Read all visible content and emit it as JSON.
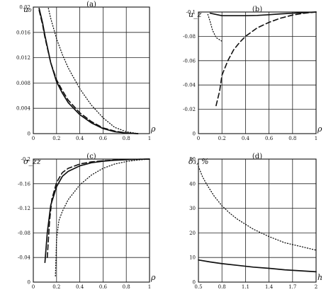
{
  "chart_data": [
    {
      "id": "a",
      "type": "line",
      "title": "(a)",
      "ylabel": "u₀",
      "xlabel": "ρ",
      "xlim": [
        0,
        1
      ],
      "ylim": [
        0,
        0.02
      ],
      "xticks": [
        "0",
        "0.2",
        "0.4",
        "0.6",
        "0.8",
        "1"
      ],
      "yticks": [
        "0",
        "0.004",
        "0.008",
        "0.012",
        "0.016",
        "0.02"
      ],
      "grid": true,
      "series": [
        {
          "style": "solid",
          "x": [
            0.05,
            0.08,
            0.1,
            0.15,
            0.2,
            0.25,
            0.3,
            0.4,
            0.5,
            0.6,
            0.7,
            0.8,
            0.9
          ],
          "y": [
            0.0198,
            0.0175,
            0.0155,
            0.0112,
            0.0082,
            0.0064,
            0.0049,
            0.003,
            0.0017,
            0.0008,
            0.0003,
            0.0001,
            0.0
          ]
        },
        {
          "style": "dashed",
          "x": [
            0.05,
            0.08,
            0.1,
            0.15,
            0.2,
            0.25,
            0.3,
            0.4,
            0.5,
            0.6,
            0.7,
            0.8,
            0.9
          ],
          "y": [
            0.0195,
            0.0172,
            0.0152,
            0.0112,
            0.0085,
            0.0068,
            0.0053,
            0.0033,
            0.0019,
            0.0009,
            0.0004,
            0.0001,
            0.0
          ]
        },
        {
          "style": "dotted",
          "x": [
            0.13,
            0.15,
            0.2,
            0.25,
            0.3,
            0.4,
            0.5,
            0.6,
            0.7,
            0.8,
            0.9
          ],
          "y": [
            0.0198,
            0.0182,
            0.015,
            0.0125,
            0.0104,
            0.0071,
            0.0045,
            0.0025,
            0.001,
            0.0003,
            0.0
          ]
        }
      ]
    },
    {
      "id": "b",
      "type": "line",
      "title": "(b)",
      "ylabel": "u_z",
      "xlabel": "ρ",
      "xlim": [
        0,
        1
      ],
      "ylim": [
        -0.1,
        0
      ],
      "xticks": [
        "0",
        "0.2",
        "0.4",
        "0.6",
        "0.8",
        "1"
      ],
      "yticks": [
        "0",
        "-0.02",
        "-0.04",
        "-0.06",
        "-0.08",
        "-0.1"
      ],
      "grid": true,
      "series": [
        {
          "style": "solid",
          "x": [
            0.1,
            0.15,
            0.2,
            0.3,
            0.4,
            0.5,
            0.6,
            0.7,
            0.8,
            0.9,
            1.0
          ],
          "y": [
            -0.001,
            -0.002,
            -0.003,
            -0.003,
            -0.003,
            -0.0028,
            -0.0022,
            -0.0015,
            -0.001,
            -0.0005,
            0.0
          ]
        },
        {
          "style": "dashed",
          "x": [
            0.15,
            0.18,
            0.2,
            0.25,
            0.3,
            0.35,
            0.4,
            0.5,
            0.6,
            0.7,
            0.8,
            0.9,
            1.0
          ],
          "y": [
            -0.077,
            -0.065,
            -0.052,
            -0.04,
            -0.031,
            -0.025,
            -0.02,
            -0.013,
            -0.0085,
            -0.005,
            -0.0025,
            -0.001,
            0.0
          ]
        },
        {
          "style": "dotted",
          "x": [
            0.08,
            0.1,
            0.12,
            0.15,
            0.2
          ],
          "y": [
            -0.002,
            -0.008,
            -0.015,
            -0.021,
            -0.024
          ]
        }
      ]
    },
    {
      "id": "c",
      "type": "line",
      "title": "(c)",
      "ylabel": "σ_zz",
      "xlabel": "ρ",
      "xlim": [
        0,
        1
      ],
      "ylim": [
        -0.2,
        0
      ],
      "xticks": [
        "0",
        "0.2",
        "0.4",
        "0.6",
        "0.8",
        "1"
      ],
      "yticks": [
        "0",
        "-0.04",
        "-0.08",
        "-0.12",
        "-0.16",
        "-0.2"
      ],
      "grid": true,
      "series": [
        {
          "style": "solid",
          "x": [
            0.1,
            0.12,
            0.15,
            0.2,
            0.25,
            0.3,
            0.4,
            0.5,
            0.6,
            0.7,
            0.8,
            0.9,
            1.0
          ],
          "y": [
            -0.168,
            -0.12,
            -0.075,
            -0.045,
            -0.028,
            -0.02,
            -0.011,
            -0.006,
            -0.0035,
            -0.002,
            -0.001,
            -0.0004,
            0.0
          ]
        },
        {
          "style": "dashed",
          "x": [
            0.12,
            0.14,
            0.16,
            0.2,
            0.25,
            0.3,
            0.4,
            0.5,
            0.6,
            0.7,
            0.8,
            0.9,
            1.0
          ],
          "y": [
            -0.16,
            -0.1,
            -0.065,
            -0.038,
            -0.022,
            -0.015,
            -0.008,
            -0.0045,
            -0.0028,
            -0.0015,
            -0.0008,
            -0.0003,
            0.0
          ]
        },
        {
          "style": "dotted",
          "x": [
            0.19,
            0.2,
            0.22,
            0.25,
            0.3,
            0.4,
            0.5,
            0.6,
            0.7,
            0.8,
            0.9,
            1.0
          ],
          "y": [
            -0.19,
            -0.13,
            -0.1,
            -0.085,
            -0.066,
            -0.042,
            -0.026,
            -0.015,
            -0.008,
            -0.004,
            -0.0015,
            0.0
          ]
        }
      ]
    },
    {
      "id": "d",
      "type": "line",
      "title": "(d)",
      "ylabel": "δ₃, %",
      "xlabel": "h",
      "xlim": [
        0.5,
        2
      ],
      "ylim": [
        0,
        50
      ],
      "xticks": [
        "0.5",
        "0.8",
        "1.1",
        "1.4",
        "1.7",
        "2"
      ],
      "yticks": [
        "0",
        "10",
        "20",
        "30",
        "40",
        "50"
      ],
      "grid": true,
      "series": [
        {
          "style": "solid",
          "x": [
            0.5,
            0.65,
            0.8,
            1.0,
            1.2,
            1.4,
            1.6,
            1.8,
            2.0
          ],
          "y": [
            9,
            8.2,
            7.5,
            6.8,
            6.1,
            5.6,
            5.0,
            4.6,
            4.2
          ]
        },
        {
          "style": "dotted",
          "x": [
            0.5,
            0.55,
            0.6,
            0.7,
            0.8,
            0.9,
            1.0,
            1.1,
            1.2,
            1.4,
            1.6,
            1.8,
            2.0
          ],
          "y": [
            47,
            43,
            40,
            35,
            31,
            28,
            25.5,
            23.5,
            21.5,
            18.5,
            16,
            14.5,
            13
          ]
        }
      ]
    }
  ]
}
